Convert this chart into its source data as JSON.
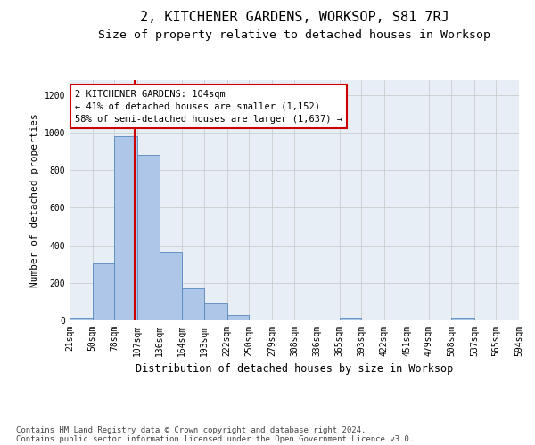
{
  "title": "2, KITCHENER GARDENS, WORKSOP, S81 7RJ",
  "subtitle": "Size of property relative to detached houses in Worksop",
  "xlabel": "Distribution of detached houses by size in Worksop",
  "ylabel": "Number of detached properties",
  "footnote1": "Contains HM Land Registry data © Crown copyright and database right 2024.",
  "footnote2": "Contains public sector information licensed under the Open Government Licence v3.0.",
  "bar_edges": [
    21,
    50,
    78,
    107,
    136,
    164,
    193,
    222,
    250,
    279,
    308,
    336,
    365,
    393,
    422,
    451,
    479,
    508,
    537,
    565,
    594
  ],
  "bar_heights": [
    13,
    305,
    980,
    880,
    365,
    170,
    88,
    27,
    0,
    0,
    0,
    0,
    13,
    0,
    0,
    0,
    0,
    13,
    0,
    0
  ],
  "bar_color": "#aec6e8",
  "bar_edge_color": "#5588bb",
  "property_size": 104,
  "annotation_text": "2 KITCHENER GARDENS: 104sqm\n← 41% of detached houses are smaller (1,152)\n58% of semi-detached houses are larger (1,637) →",
  "annotation_box_color": "#cc0000",
  "vline_color": "#cc0000",
  "ylim": [
    0,
    1280
  ],
  "yticks": [
    0,
    200,
    400,
    600,
    800,
    1000,
    1200
  ],
  "grid_color": "#cccccc",
  "bg_color": "#e8eef5",
  "title_fontsize": 11,
  "subtitle_fontsize": 9.5,
  "ylabel_fontsize": 8,
  "xlabel_fontsize": 8.5,
  "tick_fontsize": 7,
  "annotation_fontsize": 7.5,
  "footnote_fontsize": 6.5
}
